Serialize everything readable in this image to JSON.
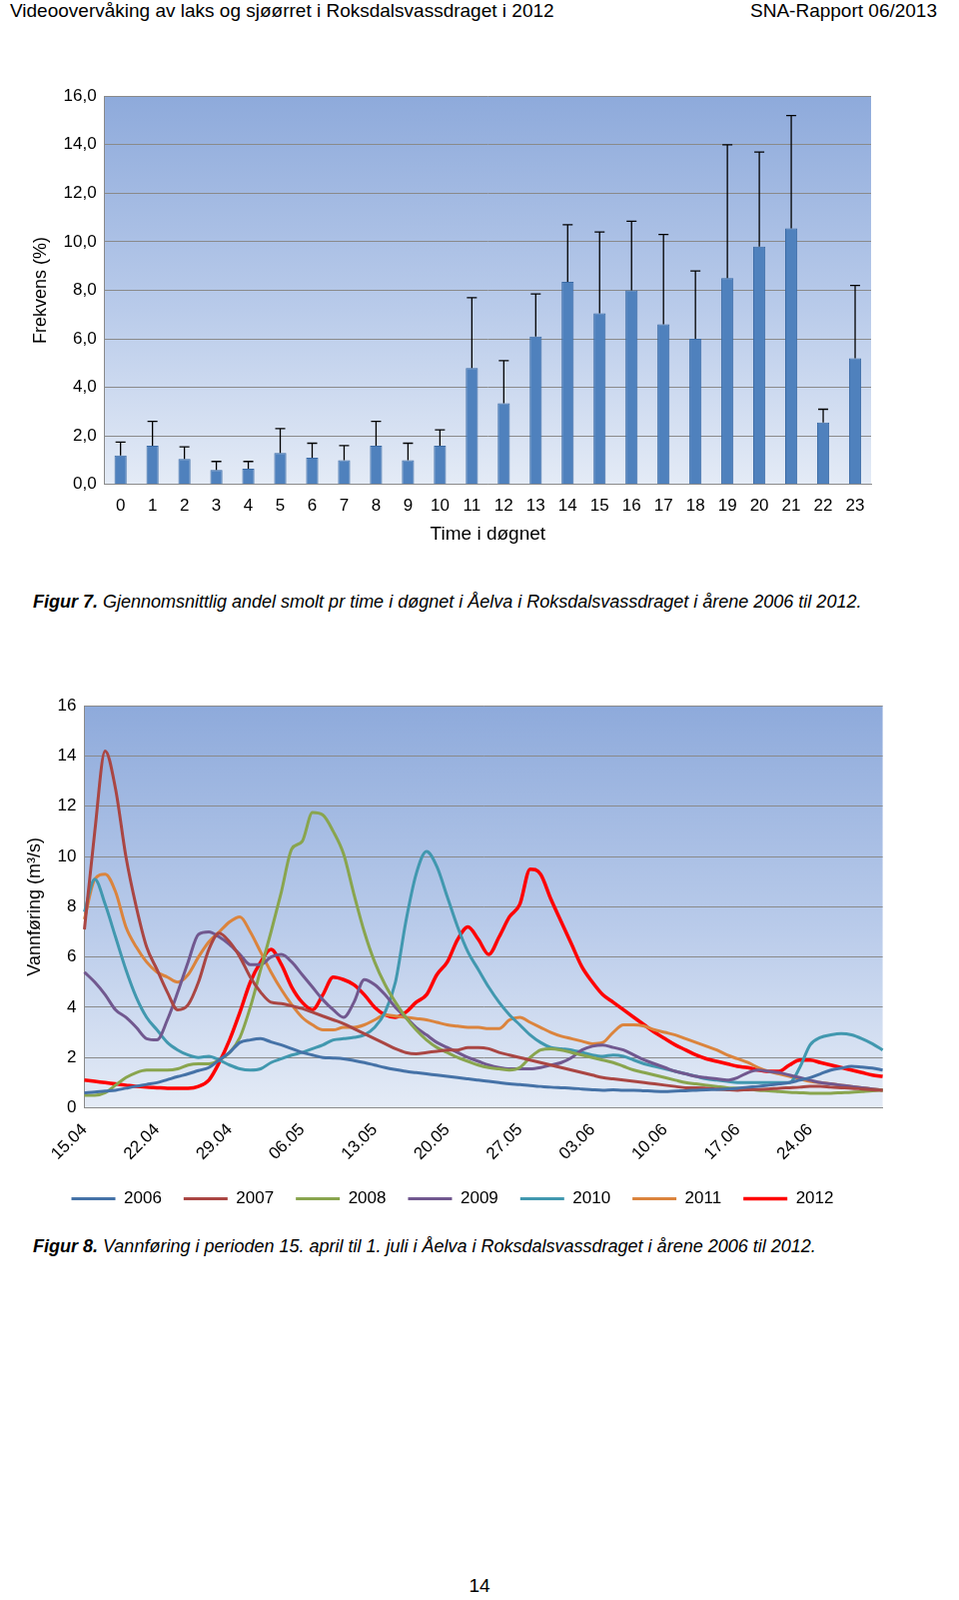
{
  "header": {
    "left": "Videoovervåking av laks og sjøørret i Roksdalsvassdraget i 2012",
    "right": "SNA-Rapport 06/2013"
  },
  "captions": [
    {
      "label": "Figur 7.",
      "text": "Gjennomsnittlig andel smolt pr time i døgnet i Åelva i Roksdalsvassdraget i årene 2006 til 2012."
    },
    {
      "label": "Figur 8.",
      "text": "Vannføring i perioden 15. april til 1. juli i Åelva i Roksdalsvassdraget i årene 2006 til 2012."
    }
  ],
  "page_number": "14",
  "chart_data": [
    {
      "type": "bar",
      "x_label": "Time i døgnet",
      "y_label": "Frekvens (%)",
      "categories": [
        "0",
        "1",
        "2",
        "3",
        "4",
        "5",
        "6",
        "7",
        "8",
        "9",
        "10",
        "11",
        "12",
        "13",
        "14",
        "15",
        "16",
        "17",
        "18",
        "19",
        "20",
        "21",
        "22",
        "23"
      ],
      "values": [
        1.2,
        1.6,
        1.05,
        0.6,
        0.65,
        1.3,
        1.1,
        1.0,
        1.6,
        1.0,
        1.6,
        4.8,
        3.35,
        6.1,
        8.35,
        7.05,
        8.0,
        6.6,
        6.0,
        8.5,
        9.8,
        10.55,
        2.55,
        5.2
      ],
      "errors": [
        0.55,
        1.0,
        0.5,
        0.35,
        0.3,
        1.0,
        0.6,
        0.6,
        1.0,
        0.7,
        0.65,
        2.9,
        1.75,
        1.75,
        2.35,
        3.35,
        2.85,
        3.7,
        2.8,
        5.5,
        3.9,
        4.65,
        0.55,
        3.0
      ],
      "color": "#4f81bd",
      "ylim": [
        0,
        16
      ],
      "yticks": [
        {
          "value": 0,
          "label": "0,0"
        },
        {
          "value": 2,
          "label": "2,0"
        },
        {
          "value": 4,
          "label": "4,0"
        },
        {
          "value": 6,
          "label": "6,0"
        },
        {
          "value": 8,
          "label": "8,0"
        },
        {
          "value": 10,
          "label": "10,0"
        },
        {
          "value": 12,
          "label": "12,0"
        },
        {
          "value": 14,
          "label": "14,0"
        },
        {
          "value": 16,
          "label": "16,0"
        }
      ],
      "grid": true
    },
    {
      "type": "line",
      "y_label": "Vannføring (m³/s)",
      "categories": [
        "15.04",
        null,
        null,
        null,
        null,
        null,
        null,
        "22.04",
        null,
        null,
        null,
        null,
        null,
        null,
        "29.04",
        null,
        null,
        null,
        null,
        null,
        null,
        "06.05",
        null,
        null,
        null,
        null,
        null,
        null,
        "13.05",
        null,
        null,
        null,
        null,
        null,
        null,
        "20.05",
        null,
        null,
        null,
        null,
        null,
        null,
        "27.05",
        null,
        null,
        null,
        null,
        null,
        null,
        "03.06",
        null,
        null,
        null,
        null,
        null,
        null,
        "10.06",
        null,
        null,
        null,
        null,
        null,
        null,
        "17.06",
        null,
        null,
        null,
        null,
        null,
        null,
        "24.06",
        null,
        null,
        null,
        null,
        null,
        null,
        null
      ],
      "series": [
        {
          "name": "2006",
          "color": "#4572a7",
          "values": [
            0.6,
            0.63,
            0.67,
            0.7,
            0.78,
            0.86,
            0.93,
            1.0,
            1.12,
            1.24,
            1.35,
            1.48,
            1.6,
            1.9,
            2.2,
            2.6,
            2.7,
            2.75,
            2.62,
            2.5,
            2.35,
            2.2,
            2.1,
            2.0,
            1.98,
            1.95,
            1.88,
            1.8,
            1.7,
            1.6,
            1.52,
            1.45,
            1.4,
            1.35,
            1.3,
            1.25,
            1.2,
            1.15,
            1.1,
            1.05,
            1.0,
            0.95,
            0.92,
            0.88,
            0.85,
            0.82,
            0.8,
            0.78,
            0.75,
            0.72,
            0.7,
            0.72,
            0.7,
            0.7,
            0.68,
            0.66,
            0.65,
            0.67,
            0.68,
            0.7,
            0.72,
            0.73,
            0.75,
            0.78,
            0.82,
            0.85,
            0.9,
            0.95,
            1.0,
            1.1,
            1.2,
            1.35,
            1.5,
            1.58,
            1.65,
            1.62,
            1.58,
            1.5
          ]
        },
        {
          "name": "2007",
          "color": "#aa4643",
          "values": [
            7.1,
            11.0,
            14.2,
            12.7,
            10.0,
            8.0,
            6.4,
            5.5,
            4.6,
            3.9,
            4.1,
            5.0,
            6.3,
            6.95,
            6.6,
            6.0,
            5.2,
            4.6,
            4.2,
            4.15,
            4.05,
            3.95,
            3.8,
            3.65,
            3.5,
            3.35,
            3.15,
            2.95,
            2.75,
            2.55,
            2.35,
            2.2,
            2.15,
            2.2,
            2.25,
            2.3,
            2.3,
            2.4,
            2.4,
            2.35,
            2.2,
            2.1,
            2.0,
            1.9,
            1.8,
            1.7,
            1.6,
            1.5,
            1.4,
            1.3,
            1.2,
            1.15,
            1.1,
            1.05,
            1.0,
            0.95,
            0.9,
            0.85,
            0.8,
            0.8,
            0.78,
            0.75,
            0.72,
            0.7,
            0.72,
            0.73,
            0.75,
            0.78,
            0.8,
            0.82,
            0.85,
            0.85,
            0.82,
            0.8,
            0.78,
            0.75,
            0.72,
            0.7
          ]
        },
        {
          "name": "2008",
          "color": "#89a54e",
          "values": [
            0.5,
            0.5,
            0.6,
            0.9,
            1.2,
            1.4,
            1.5,
            1.5,
            1.5,
            1.55,
            1.7,
            1.75,
            1.75,
            1.9,
            2.2,
            2.8,
            4.0,
            5.5,
            7.0,
            8.6,
            10.3,
            10.6,
            11.75,
            11.65,
            11.0,
            10.1,
            8.5,
            7.0,
            5.8,
            4.9,
            4.2,
            3.6,
            3.1,
            2.7,
            2.4,
            2.2,
            2.0,
            1.85,
            1.7,
            1.6,
            1.55,
            1.5,
            1.6,
            2.0,
            2.3,
            2.35,
            2.3,
            2.2,
            2.1,
            2.0,
            1.9,
            1.8,
            1.65,
            1.5,
            1.4,
            1.3,
            1.2,
            1.1,
            1.0,
            0.95,
            0.9,
            0.85,
            0.8,
            0.78,
            0.75,
            0.7,
            0.68,
            0.65,
            0.62,
            0.6,
            0.58,
            0.58,
            0.58,
            0.6,
            0.62,
            0.65,
            0.68,
            0.7
          ]
        },
        {
          "name": "2009",
          "color": "#71588f",
          "values": [
            5.4,
            5.0,
            4.5,
            3.9,
            3.6,
            3.2,
            2.75,
            2.7,
            3.5,
            4.6,
            5.8,
            6.9,
            7.0,
            6.8,
            6.5,
            6.1,
            5.7,
            5.7,
            6.0,
            6.1,
            5.8,
            5.3,
            4.8,
            4.3,
            3.9,
            3.6,
            4.2,
            5.1,
            4.9,
            4.5,
            4.0,
            3.6,
            3.2,
            2.9,
            2.6,
            2.4,
            2.2,
            2.0,
            1.85,
            1.7,
            1.6,
            1.55,
            1.55,
            1.55,
            1.6,
            1.7,
            1.8,
            2.0,
            2.3,
            2.45,
            2.5,
            2.4,
            2.3,
            2.1,
            1.9,
            1.75,
            1.6,
            1.45,
            1.35,
            1.25,
            1.2,
            1.15,
            1.1,
            1.2,
            1.4,
            1.5,
            1.45,
            1.4,
            1.3,
            1.2,
            1.1,
            1.0,
            0.95,
            0.9,
            0.85,
            0.8,
            0.75,
            0.7
          ]
        },
        {
          "name": "2010",
          "color": "#4198af",
          "values": [
            7.8,
            9.1,
            8.1,
            6.8,
            5.5,
            4.4,
            3.6,
            3.1,
            2.6,
            2.3,
            2.1,
            2.0,
            2.05,
            1.9,
            1.7,
            1.55,
            1.5,
            1.55,
            1.8,
            1.95,
            2.1,
            2.2,
            2.35,
            2.5,
            2.7,
            2.75,
            2.8,
            2.9,
            3.2,
            3.8,
            5.0,
            7.4,
            9.3,
            10.2,
            9.6,
            8.4,
            7.2,
            6.2,
            5.5,
            4.8,
            4.2,
            3.7,
            3.3,
            2.9,
            2.6,
            2.4,
            2.35,
            2.3,
            2.2,
            2.1,
            2.05,
            2.1,
            2.05,
            1.9,
            1.75,
            1.65,
            1.55,
            1.45,
            1.35,
            1.25,
            1.15,
            1.1,
            1.05,
            1.0,
            1.0,
            1.0,
            1.0,
            1.0,
            1.0,
            1.6,
            2.5,
            2.8,
            2.9,
            2.95,
            2.9,
            2.75,
            2.55,
            2.3
          ]
        },
        {
          "name": "2011",
          "color": "#db843d",
          "values": [
            7.5,
            9.1,
            9.3,
            8.6,
            7.2,
            6.4,
            5.8,
            5.4,
            5.2,
            5.0,
            5.3,
            6.0,
            6.6,
            7.0,
            7.4,
            7.6,
            7.0,
            6.2,
            5.4,
            4.7,
            4.1,
            3.6,
            3.3,
            3.1,
            3.1,
            3.2,
            3.2,
            3.3,
            3.5,
            3.7,
            3.65,
            3.6,
            3.55,
            3.5,
            3.4,
            3.3,
            3.25,
            3.2,
            3.2,
            3.15,
            3.15,
            3.5,
            3.6,
            3.4,
            3.2,
            3.0,
            2.85,
            2.75,
            2.65,
            2.55,
            2.6,
            3.0,
            3.3,
            3.3,
            3.25,
            3.1,
            3.0,
            2.9,
            2.75,
            2.6,
            2.45,
            2.3,
            2.1,
            1.95,
            1.8,
            1.6,
            1.45,
            1.35,
            1.25,
            1.15,
            1.05,
            1.0,
            0.95,
            0.9,
            0.85,
            0.8,
            0.75,
            0.7
          ]
        },
        {
          "name": "2012",
          "color": "#ff0000",
          "values": [
            1.1,
            1.05,
            1.0,
            0.95,
            0.9,
            0.85,
            0.82,
            0.8,
            0.78,
            0.78,
            0.78,
            0.85,
            1.1,
            1.8,
            2.7,
            3.8,
            5.0,
            5.8,
            6.3,
            5.7,
            4.8,
            4.2,
            3.9,
            4.5,
            5.2,
            5.1,
            4.9,
            4.5,
            4.0,
            3.7,
            3.6,
            3.8,
            4.2,
            4.5,
            5.3,
            5.8,
            6.7,
            7.2,
            6.7,
            6.1,
            6.8,
            7.6,
            8.1,
            9.5,
            9.3,
            8.3,
            7.4,
            6.5,
            5.6,
            5.0,
            4.5,
            4.2,
            3.9,
            3.6,
            3.3,
            3.0,
            2.75,
            2.5,
            2.3,
            2.1,
            1.95,
            1.85,
            1.75,
            1.65,
            1.6,
            1.5,
            1.45,
            1.45,
            1.7,
            1.9,
            1.9,
            1.8,
            1.7,
            1.6,
            1.5,
            1.4,
            1.3,
            1.25
          ]
        }
      ],
      "ylim": [
        0,
        16
      ],
      "yticks": [
        0,
        2,
        4,
        6,
        8,
        10,
        12,
        14,
        16
      ],
      "grid": true,
      "legend": "bottom"
    }
  ]
}
